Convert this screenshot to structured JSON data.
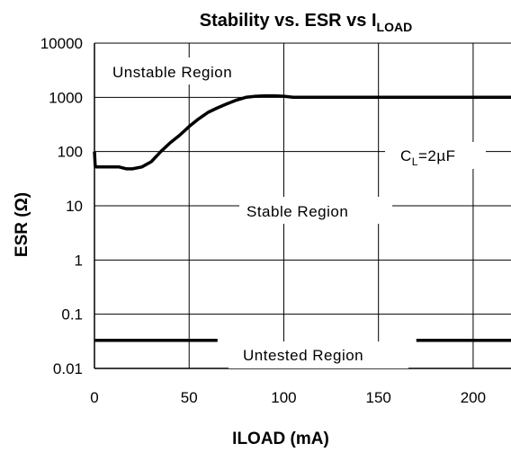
{
  "chart_data": {
    "type": "line",
    "title": "Stability vs. ESR vs I",
    "title_subscript": "LOAD",
    "xlabel": "ILOAD (mA)",
    "ylabel": "ESR (Ω)",
    "xlim": [
      0,
      220
    ],
    "ylim": [
      0.01,
      10000
    ],
    "y_scale": "log",
    "x_ticks": [
      0,
      50,
      100,
      150,
      200
    ],
    "x_tick_labels": [
      "0",
      "50",
      "100",
      "150",
      "200"
    ],
    "y_ticks": [
      0.01,
      0.1,
      1,
      10,
      100,
      1000,
      10000
    ],
    "y_tick_labels": [
      "0.01",
      "0.1",
      "1",
      "10",
      "100",
      "1000",
      "10000"
    ],
    "grid": true,
    "series": [
      {
        "x": [
          0,
          0.4,
          1,
          5,
          10,
          13,
          17,
          20,
          25,
          30,
          35,
          40,
          45,
          50,
          55,
          60,
          65,
          70,
          75,
          80,
          85,
          90,
          95,
          100,
          105,
          110,
          130,
          150,
          170,
          200,
          220
        ],
        "y": [
          100,
          55,
          52,
          52,
          52,
          52,
          48,
          48,
          52,
          65,
          100,
          145,
          200,
          290,
          400,
          530,
          640,
          760,
          890,
          1000,
          1050,
          1070,
          1070,
          1050,
          1000,
          1000,
          1000,
          1000,
          1000,
          1000,
          1000
        ]
      }
    ],
    "untested_boundary": {
      "y": 0.033,
      "x_gaps": [
        [
          65,
          170
        ]
      ]
    },
    "annotations": {
      "unstable": "Unstable Region",
      "stable": "Stable Region",
      "untested": "Untested Region",
      "cl_prefix": "C",
      "cl_sub": "L",
      "cl_suffix": "=2µF"
    }
  }
}
